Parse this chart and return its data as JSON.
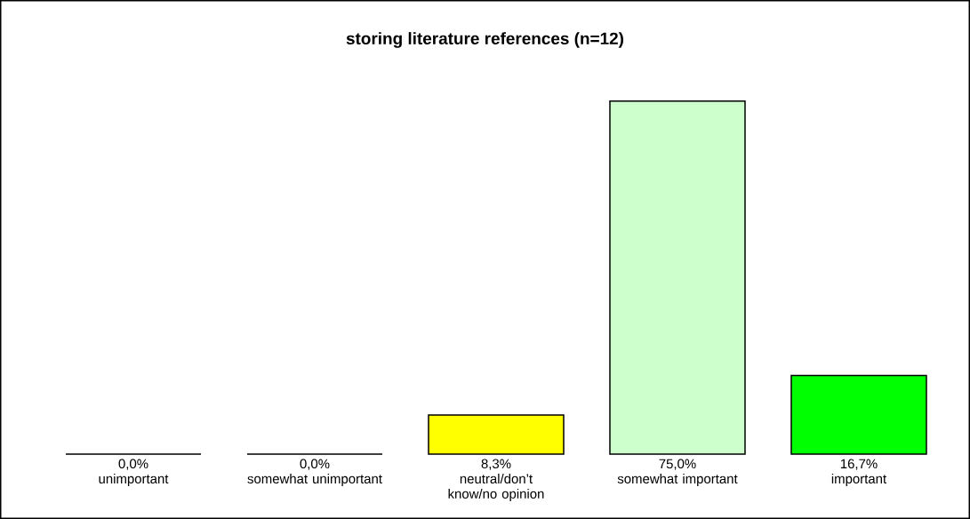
{
  "chart_data": {
    "type": "bar",
    "title": "storing literature references (n=12)",
    "categories": [
      "unimportant",
      "somewhat unimportant",
      "neutral/don’t know/no opinion",
      "somewhat important",
      "important"
    ],
    "values": [
      0.0,
      0.0,
      8.3,
      75.0,
      16.7
    ],
    "value_labels": [
      "0,0%",
      "0,0%",
      "8,3%",
      "75,0%",
      "16,7%"
    ],
    "colors": [
      "#ffffff",
      "#ffffff",
      "#ffff00",
      "#ccffcc",
      "#00ff00"
    ]
  }
}
